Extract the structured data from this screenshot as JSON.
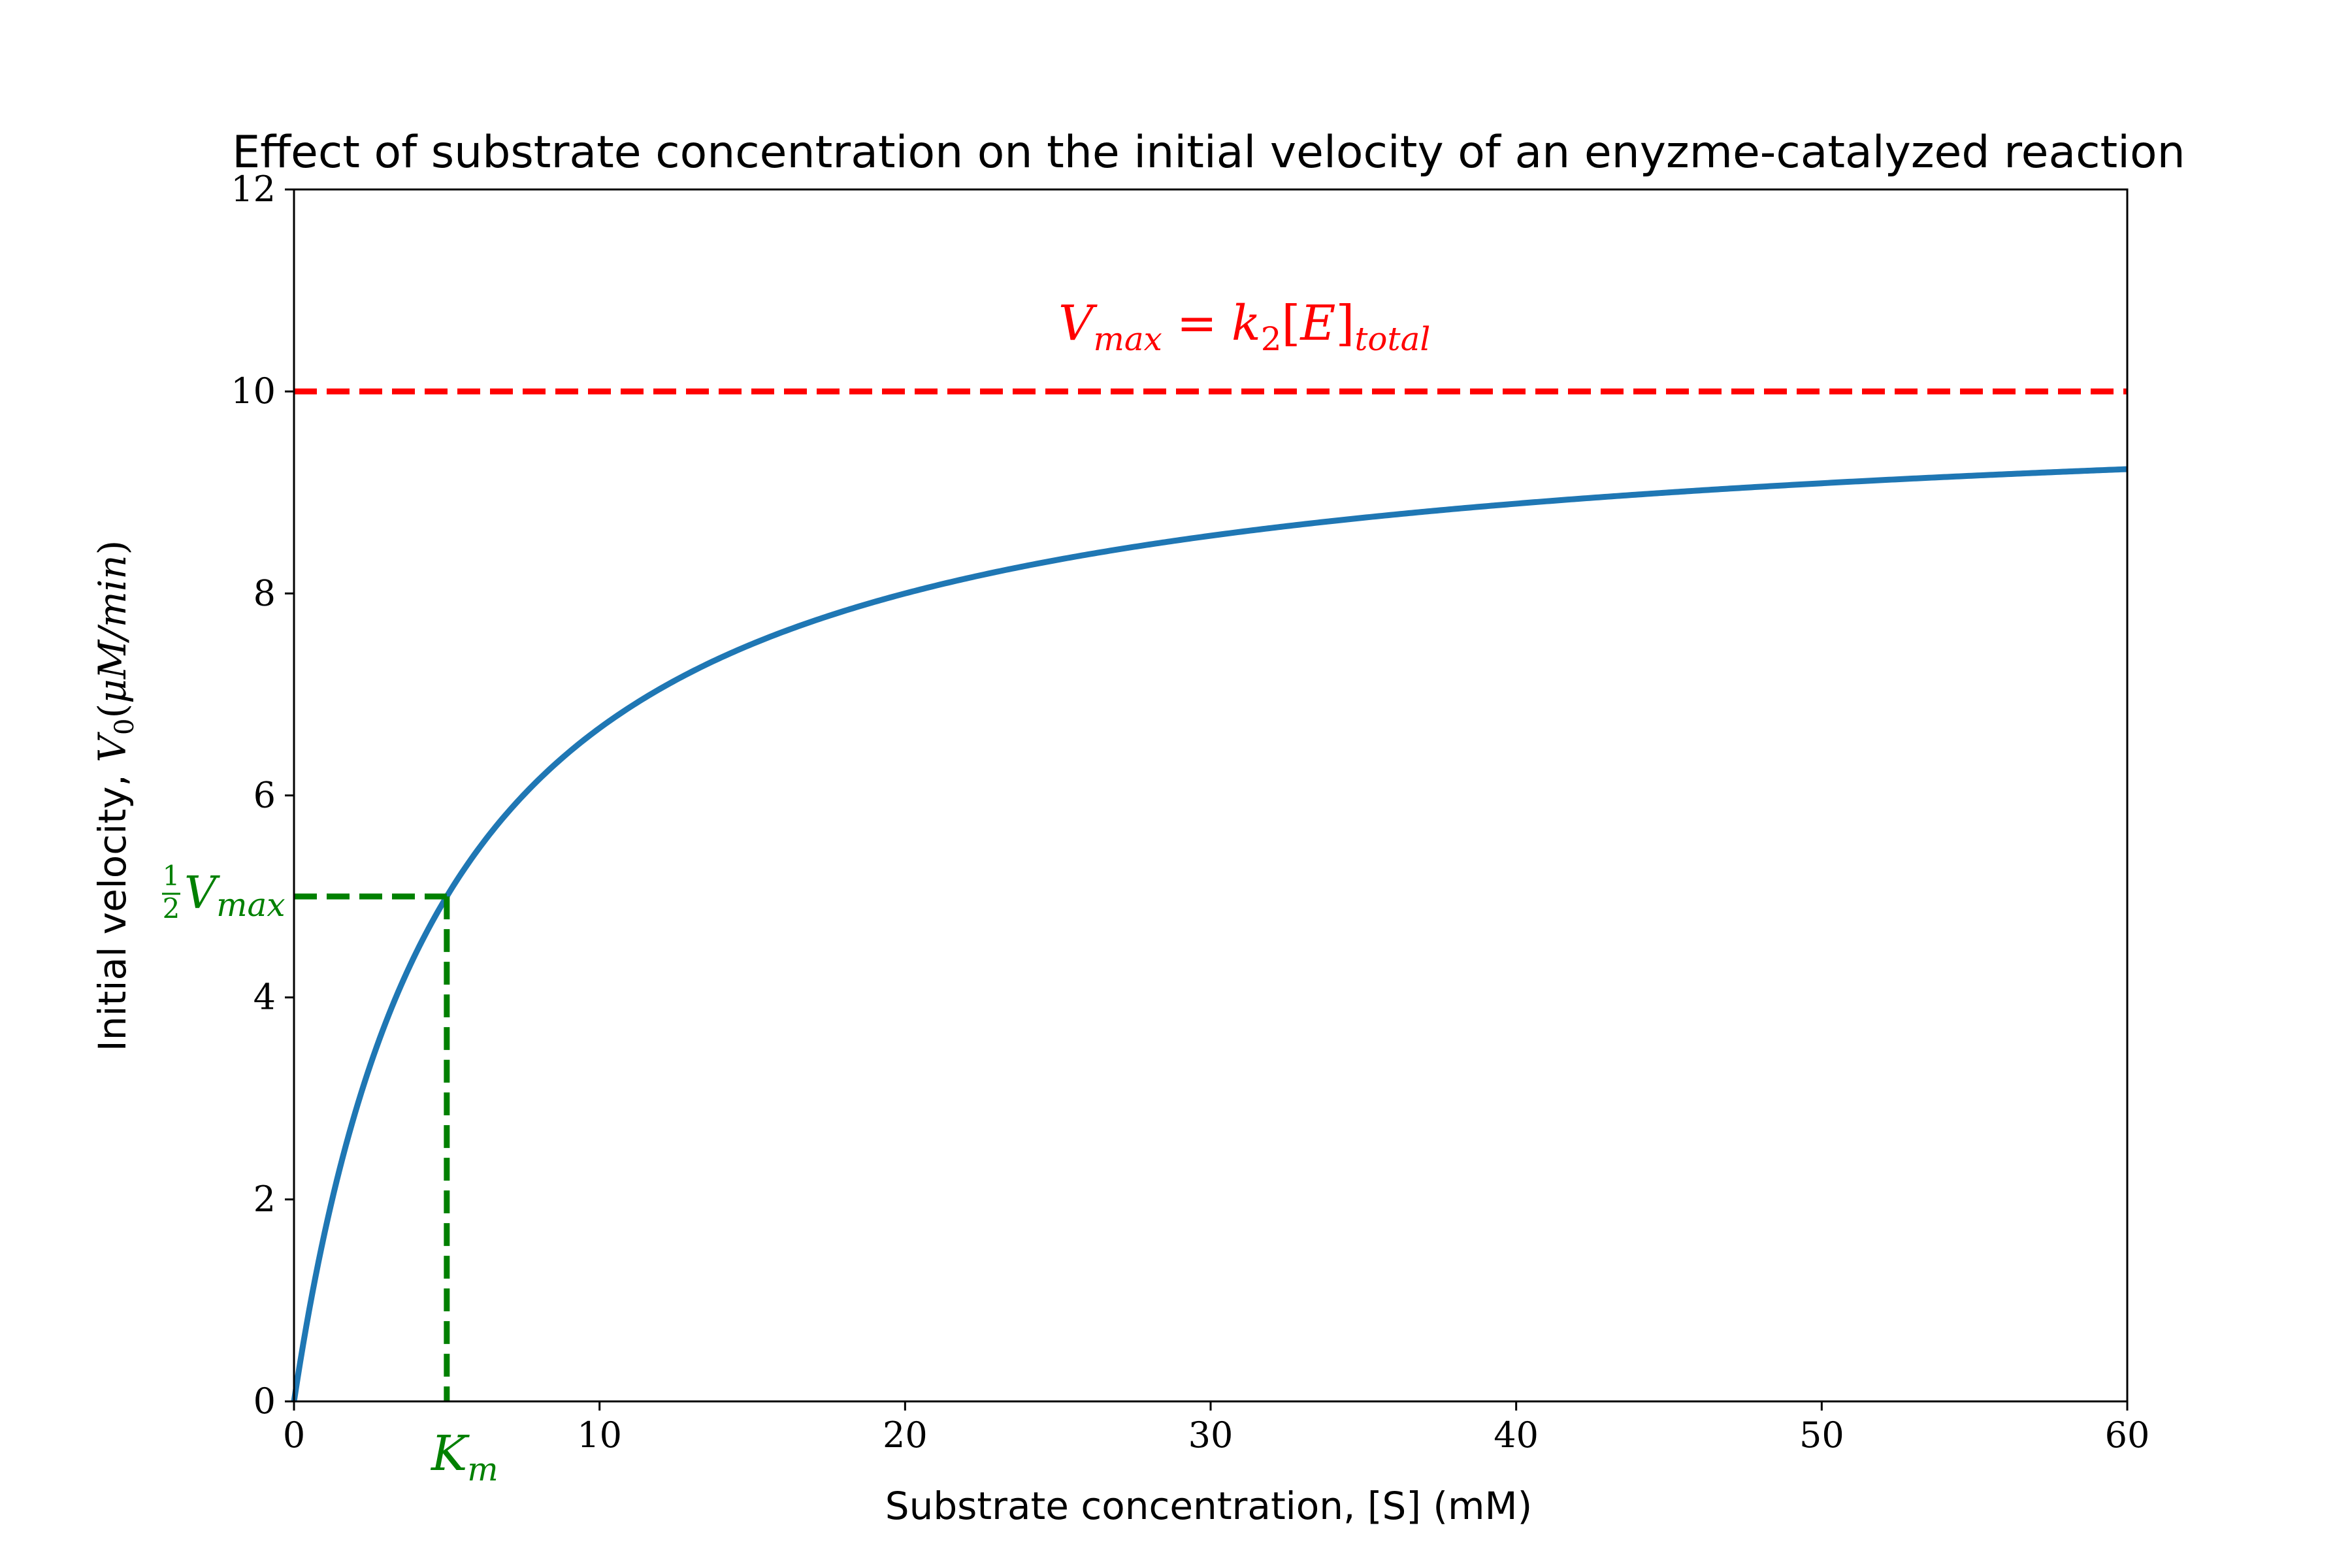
{
  "chart_data": {
    "type": "line",
    "title": "Effect of substrate concentration on the initial velocity of an enyzme-catalyzed reaction",
    "xlabel": "Substrate concentration, [S] (mM)",
    "ylabel": {
      "prefix": "Initial velocity, ",
      "v": "V",
      "v_sub": "0",
      "open_paren": "(",
      "unit": "μM/min",
      "close_paren": ")"
    },
    "xlim": [
      0,
      60
    ],
    "ylim": [
      0,
      12
    ],
    "xticks": [
      0,
      10,
      20,
      30,
      40,
      50,
      60
    ],
    "yticks": [
      0,
      2,
      4,
      6,
      8,
      10,
      12
    ],
    "grid": false,
    "vmax": 10,
    "km": 5,
    "series": [
      {
        "color": "#1f77b4",
        "equation": "Michaelis-Menten",
        "x_range": [
          0,
          60
        ]
      }
    ],
    "annotations": {
      "vmax_line": {
        "y": 10,
        "color": "#ff0000",
        "label": {
          "v": "V",
          "sub": "max",
          "eq": "=",
          "k": "k",
          "k_sub": "2",
          "bracket_open": "[",
          "e": "E",
          "bracket_close": "]",
          "e_sub": "total"
        }
      },
      "half_vmax_line": {
        "y": 5,
        "color": "#008000",
        "label": {
          "num": "1",
          "den": "2",
          "v": "V",
          "sub": "max"
        }
      },
      "km_line": {
        "x": 5,
        "color": "#008000",
        "label": {
          "k": "K",
          "sub": "m"
        }
      }
    }
  }
}
